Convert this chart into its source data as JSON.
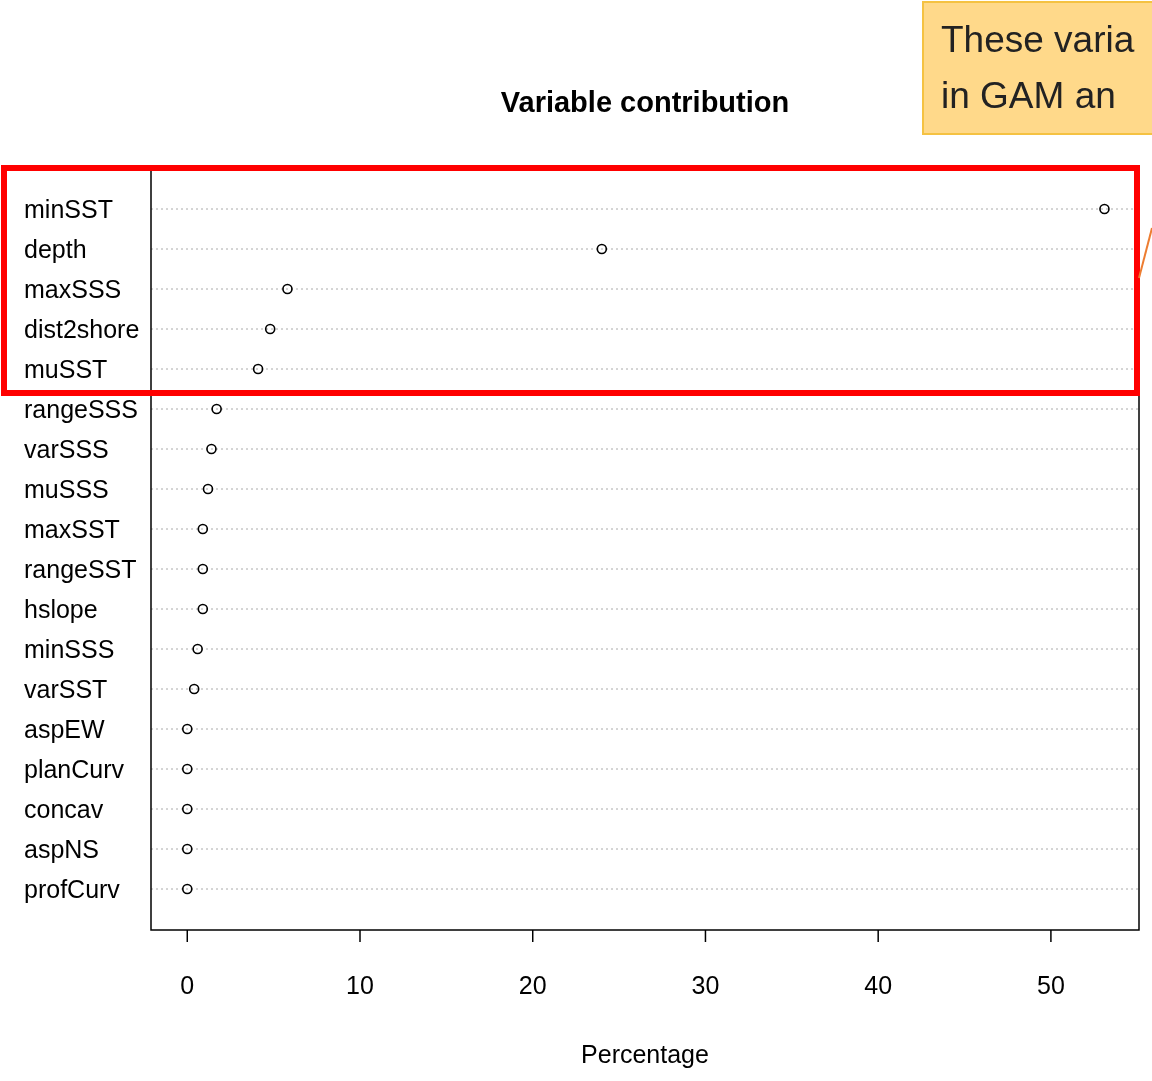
{
  "chart_data": {
    "type": "scatter",
    "orientation": "horizontal",
    "title": "Variable contribution",
    "xlabel": "Percentage",
    "categories": [
      "minSST",
      "depth",
      "maxSSS",
      "dist2shore",
      "muSST",
      "rangeSSS",
      "varSSS",
      "muSSS",
      "maxSST",
      "rangeSST",
      "hslope",
      "minSSS",
      "varSST",
      "aspEW",
      "planCurv",
      "concav",
      "aspNS",
      "profCurv"
    ],
    "values": [
      53.1,
      24.0,
      5.8,
      4.8,
      4.1,
      1.7,
      1.4,
      1.2,
      0.9,
      0.9,
      0.9,
      0.6,
      0.4,
      0,
      0,
      0,
      0,
      0
    ],
    "color": "#000000",
    "marker": "circle",
    "grid": "y",
    "xlim": [
      -2.1,
      55.1
    ],
    "xticks": [
      0,
      10,
      20,
      30,
      40,
      50
    ],
    "annotations": [
      "These varia",
      "in GAM an"
    ]
  }
}
